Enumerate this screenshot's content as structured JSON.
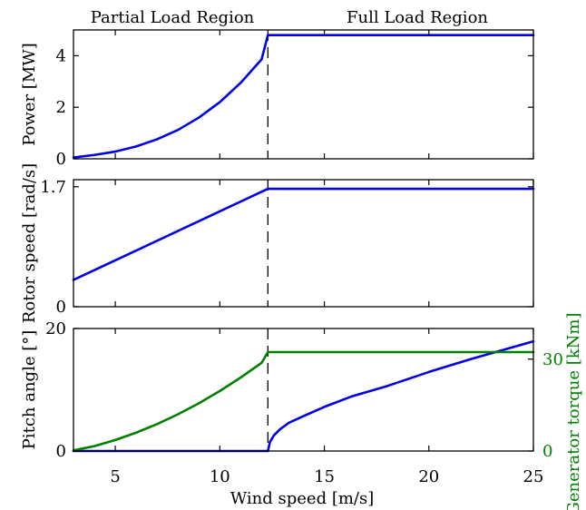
{
  "regions": {
    "partial": "Partial Load Region",
    "full": "Full Load Region"
  },
  "rated_wind_speed": 12.3,
  "xlabel": "Wind speed [m/s]",
  "xlim": [
    3,
    25
  ],
  "xticks": [
    5,
    10,
    15,
    20,
    25
  ],
  "colors": {
    "primary": "#0000e6",
    "secondary": "#008000",
    "axis": "#000000"
  },
  "chart_data": [
    {
      "type": "line",
      "ylabel": "Power [MW]",
      "ylim": [
        0,
        5
      ],
      "yticks": [
        0,
        2,
        4
      ],
      "series": [
        {
          "color": "#0000e6",
          "x": [
            3,
            4,
            5,
            6,
            7,
            8,
            9,
            10,
            11,
            12,
            12.3,
            13,
            15,
            17,
            19,
            21,
            23,
            25
          ],
          "y": [
            0.05,
            0.15,
            0.28,
            0.48,
            0.76,
            1.12,
            1.6,
            2.2,
            2.95,
            3.86,
            4.8,
            4.8,
            4.8,
            4.8,
            4.8,
            4.8,
            4.8,
            4.8
          ]
        }
      ]
    },
    {
      "type": "line",
      "ylabel": "Rotor speed [rad/s]",
      "ylim": [
        0,
        1.8
      ],
      "yticks": [
        0,
        1.7
      ],
      "series": [
        {
          "color": "#0000e6",
          "x": [
            3,
            12.3,
            13,
            25
          ],
          "y": [
            0.38,
            1.67,
            1.67,
            1.67
          ]
        }
      ]
    },
    {
      "type": "line",
      "ylabel": "Pitch angle [°]",
      "ylim": [
        0,
        20
      ],
      "yticks": [
        0,
        20
      ],
      "y2label": "Generator torque [kNm]",
      "y2lim": [
        0,
        40
      ],
      "y2ticks": [
        0,
        30
      ],
      "series": [
        {
          "color": "#0000e6",
          "axis": "left",
          "x": [
            3,
            12.3,
            12.4,
            12.6,
            12.9,
            13.3,
            14,
            15,
            16.3,
            18,
            20,
            22,
            25
          ],
          "y": [
            0,
            0,
            1.5,
            2.6,
            3.6,
            4.6,
            5.7,
            7.2,
            8.9,
            10.6,
            12.9,
            15,
            17.9
          ]
        },
        {
          "color": "#008000",
          "axis": "right",
          "x": [
            3,
            4,
            5,
            6,
            7,
            8,
            9,
            10,
            11,
            12,
            12.3,
            13,
            25
          ],
          "y": [
            0.2,
            1.6,
            3.6,
            6.0,
            8.8,
            12.0,
            15.6,
            19.6,
            24.0,
            28.8,
            32.3,
            32.3,
            32.3
          ]
        }
      ]
    }
  ]
}
